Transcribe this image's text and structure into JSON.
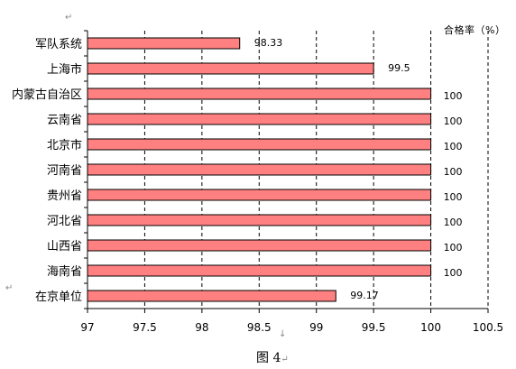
{
  "chart_data": {
    "type": "bar",
    "orientation": "horizontal",
    "categories": [
      "军队系统",
      "上海市",
      "内蒙古自治区",
      "云南省",
      "北京市",
      "河南省",
      "贵州省",
      "河北省",
      "山西省",
      "海南省",
      "在京单位"
    ],
    "values": [
      98.33,
      99.5,
      100,
      100,
      100,
      100,
      100,
      100,
      100,
      100,
      99.17
    ],
    "value_labels": [
      "98.33",
      "99.5",
      "100",
      "100",
      "100",
      "100",
      "100",
      "100",
      "100",
      "100",
      "99.17"
    ],
    "xlim": [
      97,
      100.5
    ],
    "x_ticks": [
      97,
      97.5,
      98,
      98.5,
      99,
      99.5,
      100,
      100.5
    ],
    "x_tick_labels": [
      "97",
      "97.5",
      "98",
      "98.5",
      "99",
      "99.5",
      "100",
      "100.5"
    ],
    "unit_label": "合格率（%）",
    "grid": "vertical dashed",
    "bar_color": "#ff8080",
    "bar_border": "#000000"
  },
  "caption": "图 4",
  "marks": {
    "return_glyph": "↵",
    "down_glyph": "↓"
  }
}
